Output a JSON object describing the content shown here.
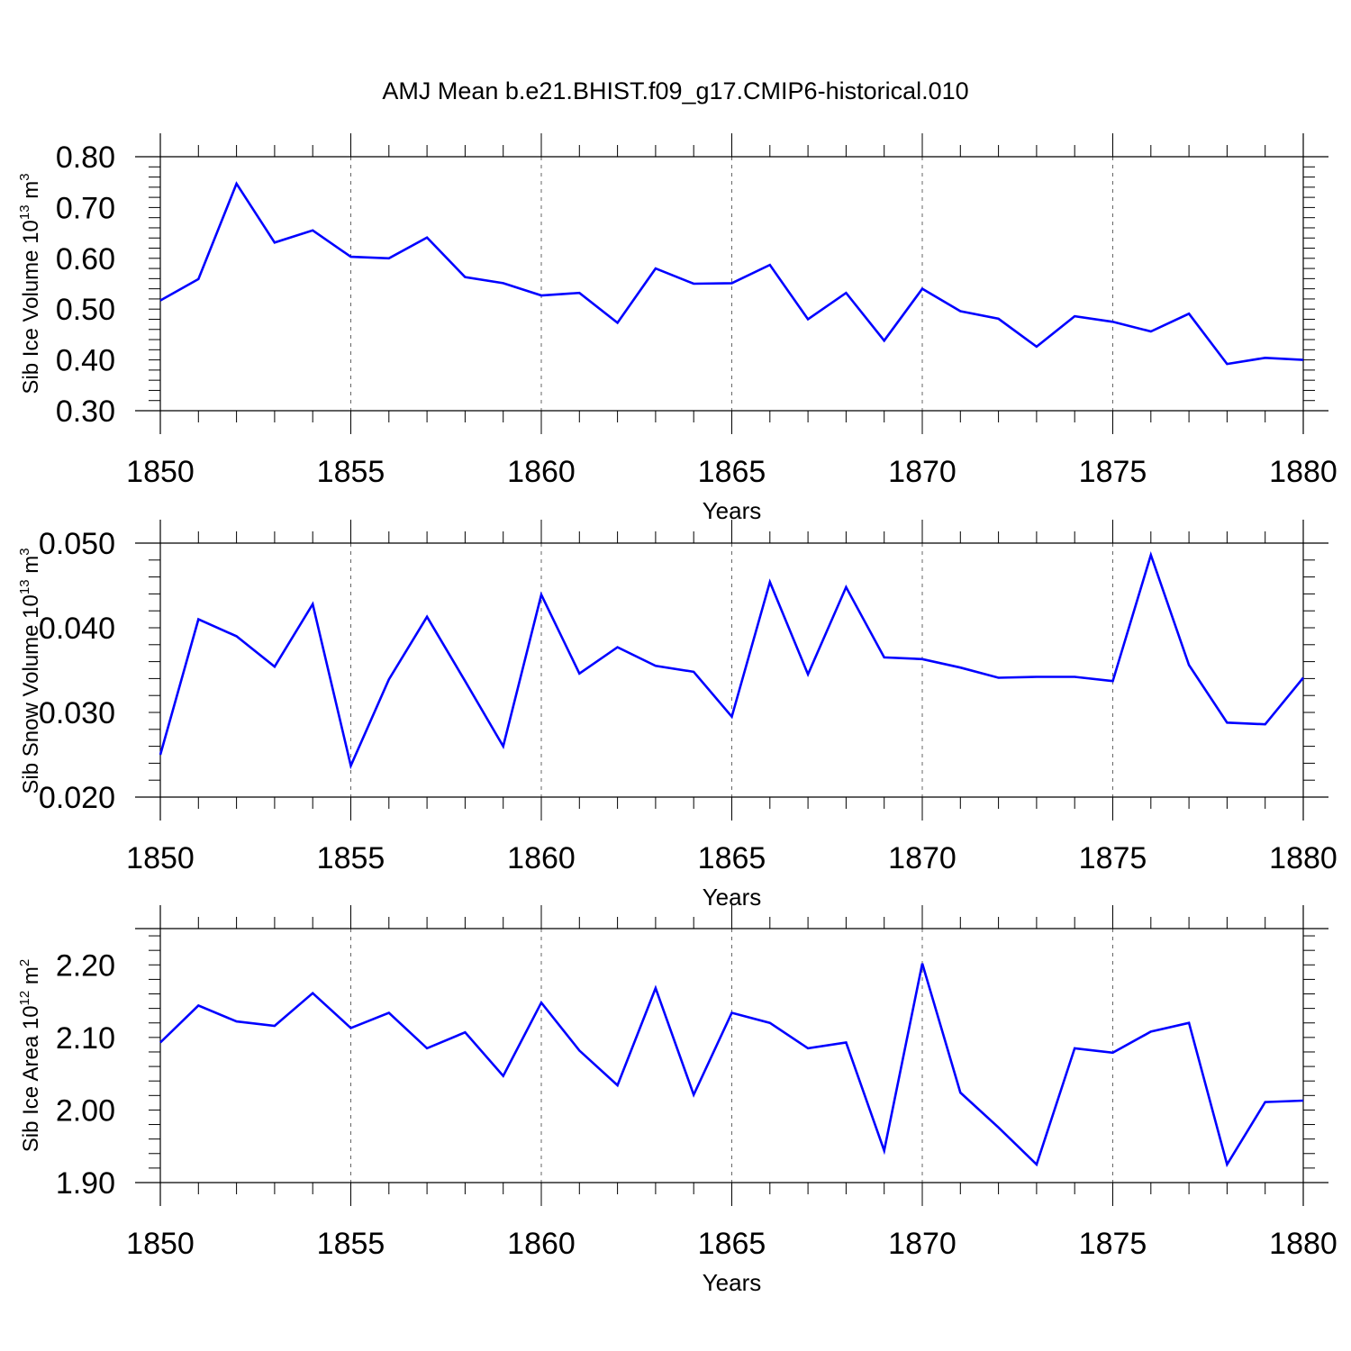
{
  "title": "AMJ Mean b.e21.BHIST.f09_g17.CMIP6-historical.010",
  "colors": {
    "line": "#0000ff",
    "axis": "#000000",
    "grid": "#666666"
  },
  "chart_data": [
    {
      "type": "line",
      "xlabel": "Years",
      "ylabel": {
        "main": "Sib Ice Volume 10",
        "exp": "13",
        "unit": " m",
        "unit_exp": "3"
      },
      "xlim": [
        1850,
        1880
      ],
      "ylim": [
        0.3,
        0.8
      ],
      "yticks": [
        0.3,
        0.4,
        0.5,
        0.6,
        0.7,
        0.8
      ],
      "ytick_labels": [
        "0.30",
        "0.40",
        "0.50",
        "0.60",
        "0.70",
        "0.80"
      ],
      "xticks": [
        1850,
        1855,
        1860,
        1865,
        1870,
        1875,
        1880
      ],
      "xtick_labels": [
        "1850",
        "1855",
        "1860",
        "1865",
        "1870",
        "1875",
        "1880"
      ],
      "grid": "x dashed",
      "x": [
        1850,
        1851,
        1852,
        1853,
        1854,
        1855,
        1856,
        1857,
        1858,
        1859,
        1860,
        1861,
        1862,
        1863,
        1864,
        1865,
        1866,
        1867,
        1868,
        1869,
        1870,
        1871,
        1872,
        1873,
        1874,
        1875,
        1876,
        1877,
        1878,
        1879,
        1880
      ],
      "values": [
        0.517,
        0.559,
        0.747,
        0.631,
        0.655,
        0.603,
        0.6,
        0.641,
        0.563,
        0.551,
        0.527,
        0.532,
        0.473,
        0.58,
        0.55,
        0.551,
        0.587,
        0.48,
        0.532,
        0.438,
        0.54,
        0.496,
        0.481,
        0.426,
        0.486,
        0.475,
        0.456,
        0.491,
        0.392,
        0.404,
        0.4
      ]
    },
    {
      "type": "line",
      "xlabel": "Years",
      "ylabel": {
        "main": "Sib Snow Volume 10",
        "exp": "13",
        "unit": " m",
        "unit_exp": "3"
      },
      "xlim": [
        1850,
        1880
      ],
      "ylim": [
        0.02,
        0.05
      ],
      "yticks": [
        0.02,
        0.03,
        0.04,
        0.05
      ],
      "ytick_labels": [
        "0.020",
        "0.030",
        "0.040",
        "0.050"
      ],
      "xticks": [
        1850,
        1855,
        1860,
        1865,
        1870,
        1875,
        1880
      ],
      "xtick_labels": [
        "1850",
        "1855",
        "1860",
        "1865",
        "1870",
        "1875",
        "1880"
      ],
      "grid": "x dashed",
      "x": [
        1850,
        1851,
        1852,
        1853,
        1854,
        1855,
        1856,
        1857,
        1858,
        1859,
        1860,
        1861,
        1862,
        1863,
        1864,
        1865,
        1866,
        1867,
        1868,
        1869,
        1870,
        1871,
        1872,
        1873,
        1874,
        1875,
        1876,
        1877,
        1878,
        1879,
        1880
      ],
      "values": [
        0.025,
        0.041,
        0.039,
        0.0354,
        0.0428,
        0.0237,
        0.0339,
        0.0413,
        0.0337,
        0.026,
        0.0439,
        0.0346,
        0.0377,
        0.0355,
        0.0348,
        0.0295,
        0.0454,
        0.0345,
        0.0448,
        0.0365,
        0.0363,
        0.0353,
        0.0341,
        0.0342,
        0.0342,
        0.0337,
        0.0486,
        0.0356,
        0.0288,
        0.0286,
        0.0341
      ]
    },
    {
      "type": "line",
      "xlabel": "Years",
      "ylabel": {
        "main": "Sib Ice Area 10",
        "exp": "12",
        "unit": " m",
        "unit_exp": "2"
      },
      "xlim": [
        1850,
        1880
      ],
      "ylim": [
        1.9,
        2.25
      ],
      "yticks": [
        1.9,
        2.0,
        2.1,
        2.2
      ],
      "ytick_labels": [
        "1.90",
        "2.00",
        "2.10",
        "2.20"
      ],
      "xticks": [
        1850,
        1855,
        1860,
        1865,
        1870,
        1875,
        1880
      ],
      "xtick_labels": [
        "1850",
        "1855",
        "1860",
        "1865",
        "1870",
        "1875",
        "1880"
      ],
      "grid": "x dashed",
      "x": [
        1850,
        1851,
        1852,
        1853,
        1854,
        1855,
        1856,
        1857,
        1858,
        1859,
        1860,
        1861,
        1862,
        1863,
        1864,
        1865,
        1866,
        1867,
        1868,
        1869,
        1870,
        1871,
        1872,
        1873,
        1874,
        1875,
        1876,
        1877,
        1878,
        1879,
        1880
      ],
      "values": [
        2.093,
        2.144,
        2.122,
        2.116,
        2.161,
        2.113,
        2.134,
        2.085,
        2.107,
        2.047,
        2.148,
        2.082,
        2.034,
        2.168,
        2.021,
        2.134,
        2.12,
        2.085,
        2.093,
        1.944,
        2.202,
        2.024,
        1.976,
        1.925,
        2.085,
        2.079,
        2.108,
        2.12,
        1.925,
        2.011,
        2.013
      ]
    }
  ]
}
